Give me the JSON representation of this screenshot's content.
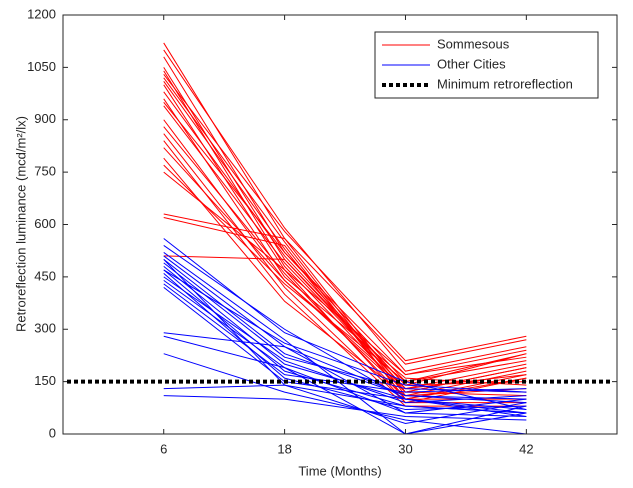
{
  "chart_data": {
    "type": "line",
    "x_label": "Time (Months)",
    "y_label": "Retroreflection luminance (mcd/m²/lx)",
    "x": [
      6,
      18,
      30,
      42
    ],
    "xlim": [
      -4,
      51
    ],
    "xticks": [
      6,
      18,
      30,
      42
    ],
    "ylim": [
      0,
      1200
    ],
    "yticks": [
      0,
      150,
      300,
      450,
      600,
      750,
      900,
      1050,
      1200
    ],
    "grid": false,
    "legend": "upper right",
    "series": [
      {
        "name": "Sommesous",
        "color": "#ff0000",
        "lines": [
          [
            1120,
            560,
            200,
            270
          ],
          [
            1100,
            590,
            180,
            250
          ],
          [
            1080,
            520,
            150,
            230
          ],
          [
            1050,
            500,
            130,
            200
          ],
          [
            1040,
            480,
            120,
            190
          ],
          [
            1020,
            550,
            110,
            180
          ],
          [
            1010,
            530,
            100,
            170
          ],
          [
            1000,
            470,
            90,
            160
          ],
          [
            980,
            510,
            140,
            150
          ],
          [
            960,
            450,
            160,
            140
          ],
          [
            940,
            490,
            130,
            120
          ],
          [
            900,
            440,
            120,
            110
          ],
          [
            880,
            460,
            100,
            100
          ],
          [
            860,
            420,
            90,
            90
          ],
          [
            840,
            400,
            80,
            80
          ],
          [
            790,
            380,
            110,
            130
          ],
          [
            770,
            430,
            150,
            210
          ],
          [
            750,
            470,
            170,
            240
          ],
          [
            630,
            560,
            120,
            190
          ],
          [
            620,
            540,
            100,
            160
          ],
          [
            510,
            500,
            140,
            230
          ],
          [
            1030,
            580,
            210,
            280
          ],
          [
            950,
            520,
            170,
            220
          ],
          [
            820,
            440,
            130,
            170
          ]
        ]
      },
      {
        "name": "Other Cities",
        "color": "#0000ff",
        "lines": [
          [
            560,
            290,
            150,
            70
          ],
          [
            540,
            300,
            100,
            60
          ],
          [
            520,
            270,
            0,
            80
          ],
          [
            510,
            250,
            60,
            100
          ],
          [
            500,
            230,
            110,
            90
          ],
          [
            490,
            220,
            130,
            120
          ],
          [
            480,
            200,
            100,
            50
          ],
          [
            470,
            180,
            80,
            60
          ],
          [
            460,
            160,
            70,
            80
          ],
          [
            450,
            210,
            90,
            110
          ],
          [
            440,
            190,
            0,
            60
          ],
          [
            430,
            170,
            120,
            130
          ],
          [
            420,
            150,
            100,
            70
          ],
          [
            290,
            250,
            110,
            100
          ],
          [
            280,
            190,
            60,
            50
          ],
          [
            230,
            120,
            40,
            0
          ],
          [
            130,
            140,
            80,
            60
          ],
          [
            110,
            100,
            50,
            40
          ],
          [
            500,
            140,
            30,
            90
          ],
          [
            470,
            260,
            140,
            120
          ]
        ]
      }
    ],
    "reference_line": {
      "name": "Minimum retroreflection",
      "value": 150,
      "color": "#000000",
      "style": "dotted"
    }
  }
}
